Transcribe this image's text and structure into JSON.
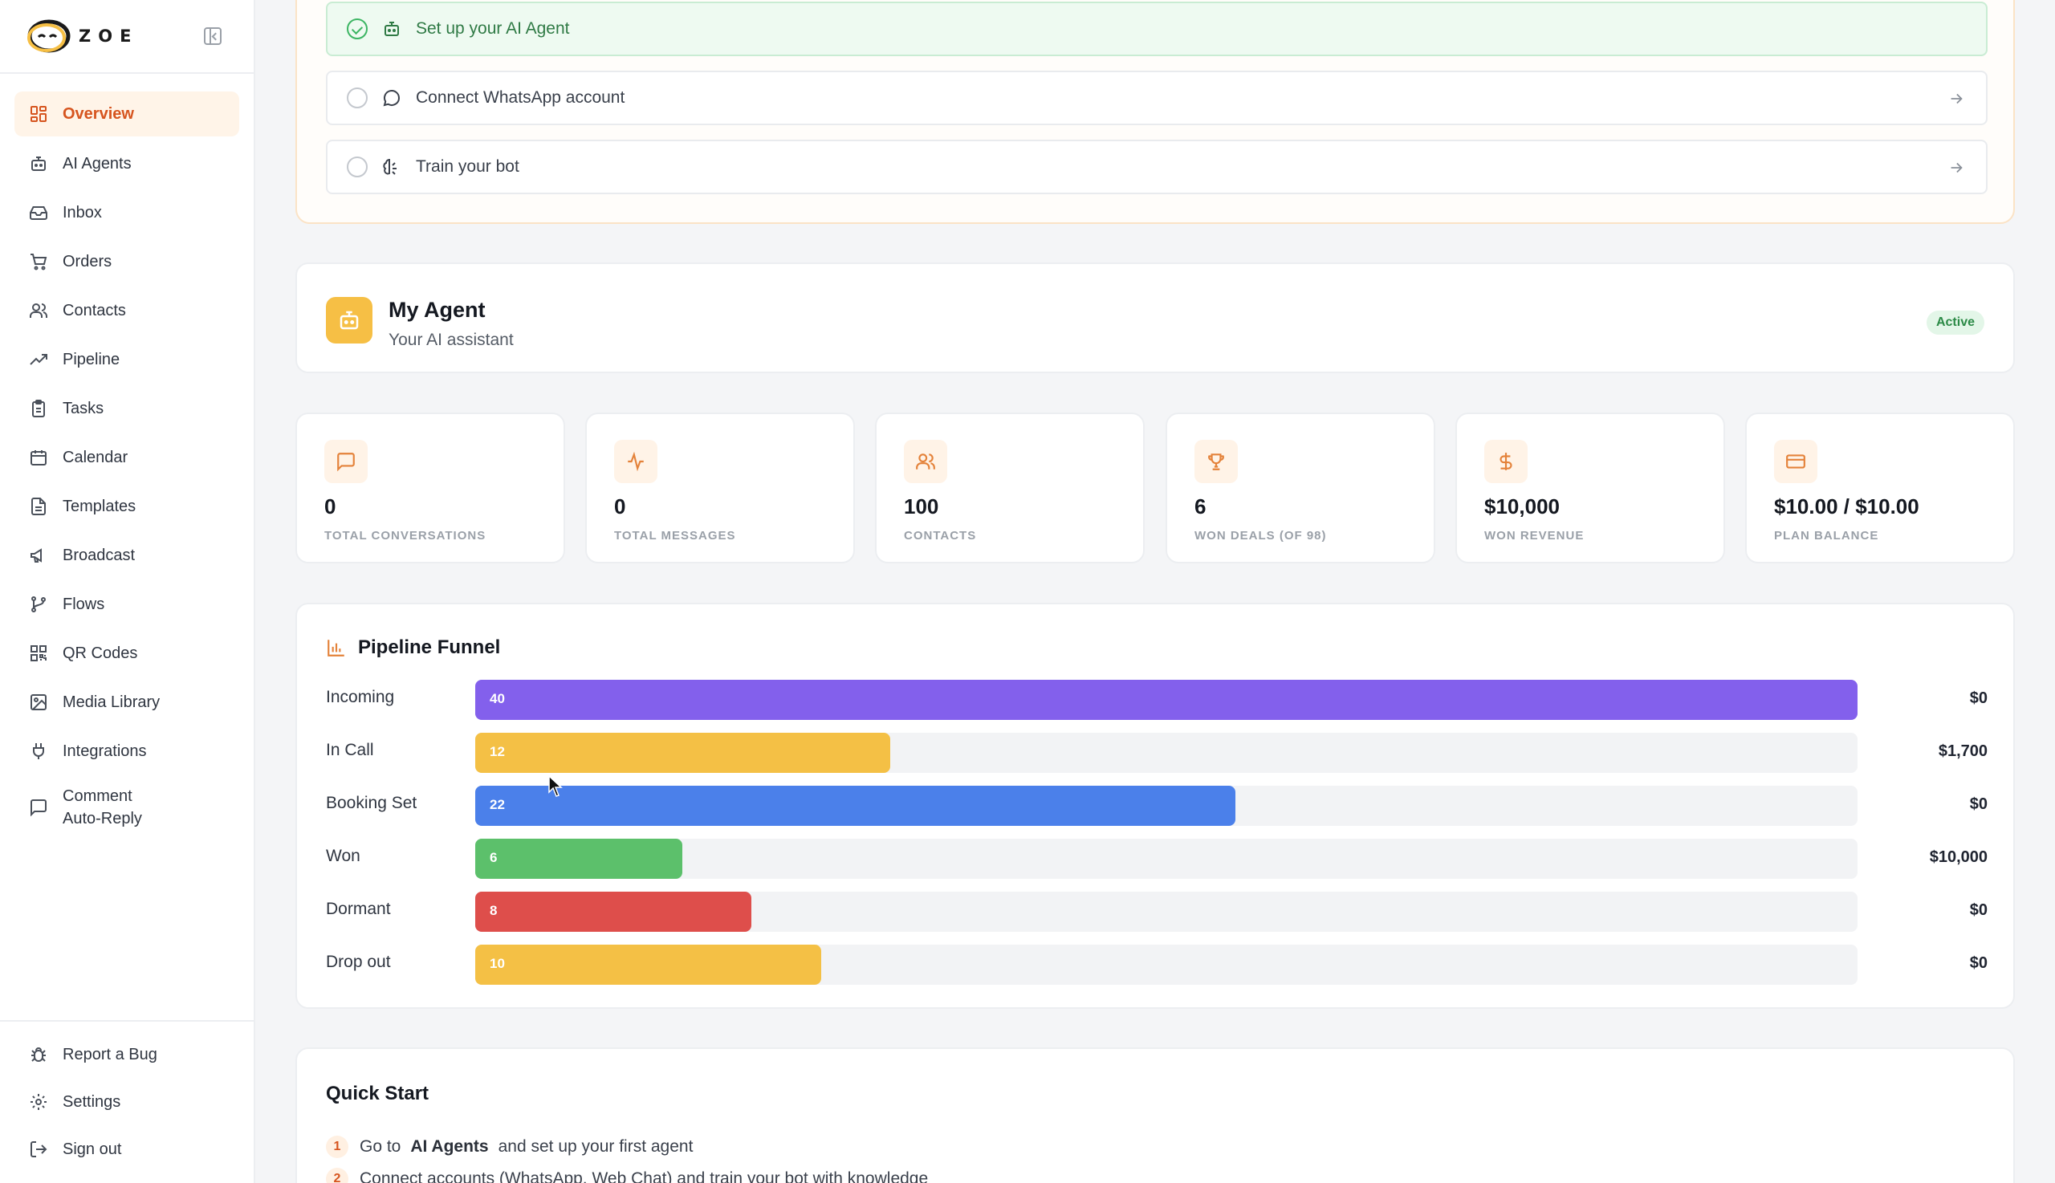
{
  "brand": {
    "name": "ZOE"
  },
  "sidebar": {
    "items": [
      {
        "label": "Overview",
        "icon": "grid-icon",
        "active": true
      },
      {
        "label": "AI Agents",
        "icon": "bot-icon"
      },
      {
        "label": "Inbox",
        "icon": "inbox-icon"
      },
      {
        "label": "Orders",
        "icon": "cart-icon"
      },
      {
        "label": "Contacts",
        "icon": "users-icon"
      },
      {
        "label": "Pipeline",
        "icon": "trending-icon"
      },
      {
        "label": "Tasks",
        "icon": "clipboard-icon"
      },
      {
        "label": "Calendar",
        "icon": "calendar-icon"
      },
      {
        "label": "Templates",
        "icon": "file-icon"
      },
      {
        "label": "Broadcast",
        "icon": "megaphone-icon"
      },
      {
        "label": "Flows",
        "icon": "flow-icon"
      },
      {
        "label": "QR Codes",
        "icon": "qr-icon"
      },
      {
        "label": "Media Library",
        "icon": "image-icon"
      },
      {
        "label": "Integrations",
        "icon": "plug-icon"
      },
      {
        "label": "Comment Auto-Reply",
        "icon": "comment-icon"
      }
    ],
    "bottom": [
      {
        "label": "Report a Bug",
        "icon": "bug-icon"
      },
      {
        "label": "Settings",
        "icon": "gear-icon"
      },
      {
        "label": "Sign out",
        "icon": "logout-icon"
      }
    ]
  },
  "setup": {
    "steps": [
      {
        "label": "Set up your AI Agent",
        "done": true
      },
      {
        "label": "Connect WhatsApp account",
        "done": false
      },
      {
        "label": "Train your bot",
        "done": false
      }
    ]
  },
  "agent": {
    "name": "My Agent",
    "subtitle": "Your AI assistant",
    "status": "Active"
  },
  "stats": [
    {
      "value": "0",
      "label": "TOTAL CONVERSATIONS",
      "icon": "message-icon"
    },
    {
      "value": "0",
      "label": "TOTAL MESSAGES",
      "icon": "activity-icon"
    },
    {
      "value": "100",
      "label": "CONTACTS",
      "icon": "users-icon"
    },
    {
      "value": "6",
      "label": "WON DEALS (OF 98)",
      "icon": "trophy-icon"
    },
    {
      "value": "$10,000",
      "label": "WON REVENUE",
      "icon": "dollar-icon"
    },
    {
      "value": "$10.00 / $10.00",
      "label": "PLAN BALANCE",
      "icon": "credit-card-icon"
    }
  ],
  "funnel": {
    "title": "Pipeline Funnel",
    "max": 40,
    "stages": [
      {
        "label": "Incoming",
        "count": 40,
        "amount": "$0",
        "color": "#8360ec"
      },
      {
        "label": "In Call",
        "count": 12,
        "amount": "$1,700",
        "color": "#f4c045"
      },
      {
        "label": "Booking Set",
        "count": 22,
        "amount": "$0",
        "color": "#4b80ea"
      },
      {
        "label": "Won",
        "count": 6,
        "amount": "$10,000",
        "color": "#5cc06b"
      },
      {
        "label": "Dormant",
        "count": 8,
        "amount": "$0",
        "color": "#de4e4b"
      },
      {
        "label": "Drop out",
        "count": 10,
        "amount": "$0",
        "color": "#f4c045"
      }
    ]
  },
  "quick_start": {
    "title": "Quick Start",
    "steps": [
      {
        "num": "1",
        "before": "Go to",
        "bold": "AI Agents",
        "after": "and set up your first agent"
      },
      {
        "num": "2",
        "text": "Connect accounts (WhatsApp, Web Chat) and train your bot with knowledge"
      }
    ]
  }
}
